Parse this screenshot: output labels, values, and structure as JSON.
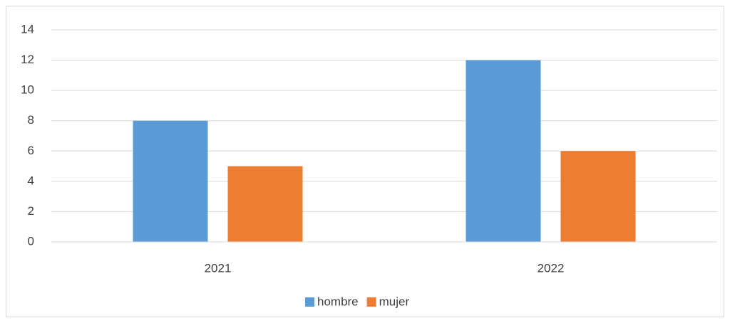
{
  "chart_data": {
    "type": "bar",
    "categories": [
      "2021",
      "2022"
    ],
    "series": [
      {
        "name": "hombre",
        "color": "#5b9bd5",
        "values": [
          8,
          12
        ]
      },
      {
        "name": "mujer",
        "color": "#ed7d31",
        "values": [
          5,
          6
        ]
      }
    ],
    "ylim": [
      0,
      14
    ],
    "yticks": [
      0,
      2,
      4,
      6,
      8,
      10,
      12,
      14
    ],
    "grid": true,
    "legend": "bottom"
  }
}
